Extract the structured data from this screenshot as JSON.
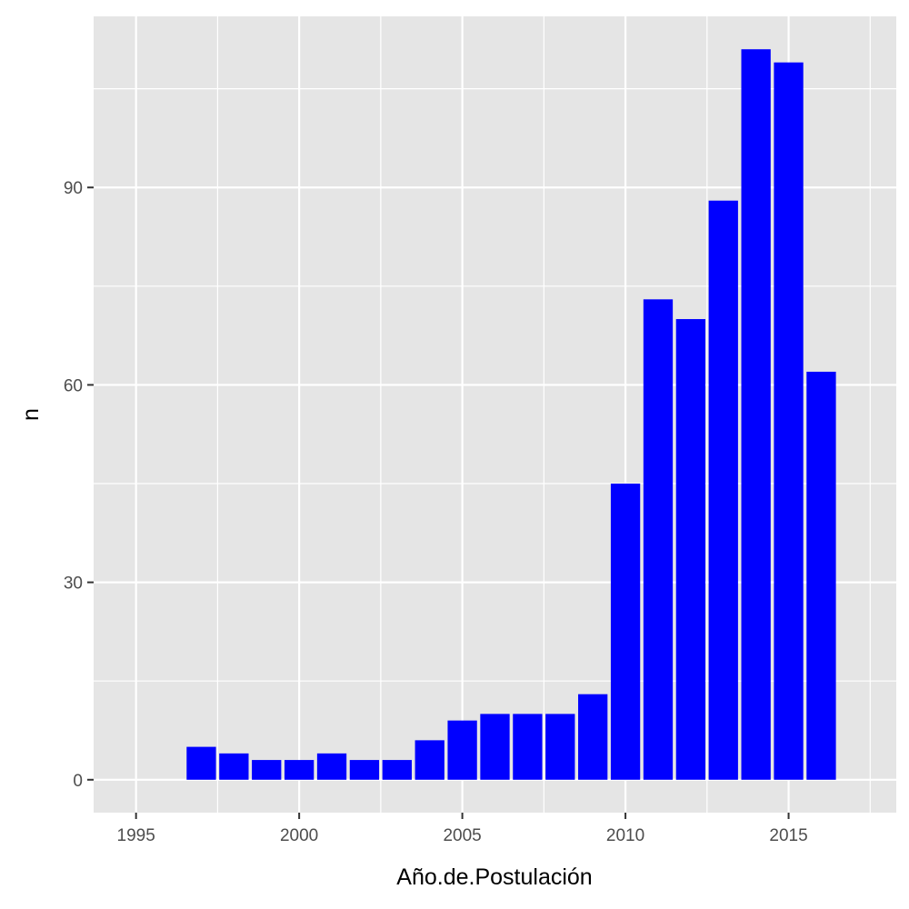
{
  "chart_data": {
    "type": "bar",
    "title": "",
    "xlabel": "Año.de.Postulación",
    "ylabel": "n",
    "x": [
      1997,
      1998,
      1999,
      2000,
      2001,
      2002,
      2003,
      2004,
      2005,
      2006,
      2007,
      2008,
      2009,
      2010,
      2011,
      2012,
      2013,
      2014,
      2015,
      2016
    ],
    "values": [
      5,
      4,
      3,
      3,
      4,
      3,
      3,
      6,
      9,
      10,
      10,
      10,
      13,
      45,
      73,
      70,
      88,
      111,
      109,
      62
    ],
    "xlim": [
      1993.7,
      2018.3
    ],
    "ylim": [
      -5,
      116
    ],
    "xticks": [
      1995,
      2000,
      2005,
      2010,
      2015
    ],
    "yticks": [
      0,
      30,
      60,
      90
    ],
    "grid": true,
    "legend": "none",
    "bar_color": "#0000FF",
    "panel_background": "#E5E5E5",
    "grid_color": "#FFFFFF"
  }
}
